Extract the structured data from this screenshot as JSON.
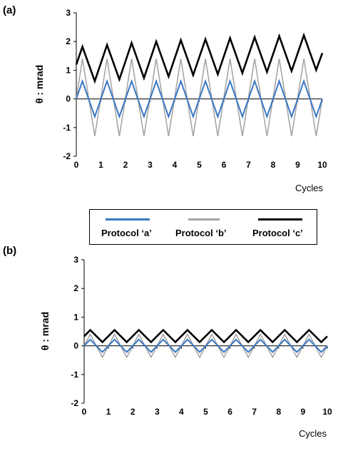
{
  "panels": {
    "a": {
      "label": "(a)"
    },
    "b": {
      "label": "(b)"
    }
  },
  "legend": [
    {
      "name": "Protocol ‘a’",
      "color": "#3a78c4"
    },
    {
      "name": "Protocol ‘b’",
      "color": "#a6a6a6"
    },
    {
      "name": "Protocol ‘c’",
      "color": "#000000"
    }
  ],
  "chart_data": [
    {
      "type": "line",
      "panel": "(a)",
      "xlabel": "Cycles",
      "ylabel": "θ : mrad",
      "xlim": [
        0,
        10
      ],
      "ylim": [
        -2,
        3
      ],
      "xticks": [
        0,
        1,
        2,
        3,
        4,
        5,
        6,
        7,
        8,
        9,
        10
      ],
      "yticks": [
        -2,
        -1,
        0,
        1,
        2,
        3
      ],
      "series": [
        {
          "name": "Protocol ‘a’",
          "color": "#3a78c4",
          "x": [
            0,
            0.25,
            0.75,
            1.25,
            1.75,
            2.25,
            2.75,
            3.25,
            3.75,
            4.25,
            4.75,
            5.25,
            5.75,
            6.25,
            6.75,
            7.25,
            7.75,
            8.25,
            8.75,
            9.25,
            9.75,
            10
          ],
          "y": [
            0,
            0.62,
            -0.62,
            0.62,
            -0.62,
            0.62,
            -0.62,
            0.62,
            -0.62,
            0.62,
            -0.62,
            0.62,
            -0.62,
            0.62,
            -0.62,
            0.62,
            -0.62,
            0.62,
            -0.62,
            0.62,
            -0.62,
            0
          ]
        },
        {
          "name": "Protocol ‘b’",
          "color": "#a6a6a6",
          "x": [
            0,
            0.25,
            0.75,
            1.25,
            1.75,
            2.25,
            2.75,
            3.25,
            3.75,
            4.25,
            4.75,
            5.25,
            5.75,
            6.25,
            6.75,
            7.25,
            7.75,
            8.25,
            8.75,
            9.25,
            9.75,
            10
          ],
          "y": [
            0,
            1.4,
            -1.3,
            1.4,
            -1.3,
            1.4,
            -1.3,
            1.4,
            -1.3,
            1.4,
            -1.3,
            1.4,
            -1.3,
            1.4,
            -1.3,
            1.4,
            -1.3,
            1.4,
            -1.3,
            1.4,
            -1.3,
            0
          ]
        },
        {
          "name": "Protocol ‘c’",
          "color": "#000000",
          "x": [
            0,
            0.25,
            0.75,
            1.25,
            1.75,
            2.25,
            2.75,
            3.25,
            3.75,
            4.25,
            4.75,
            5.25,
            5.75,
            6.25,
            6.75,
            7.25,
            7.75,
            8.25,
            8.75,
            9.25,
            9.75,
            10
          ],
          "y": [
            1.2,
            1.82,
            0.62,
            1.88,
            0.68,
            1.95,
            0.73,
            2.0,
            0.78,
            2.05,
            0.83,
            2.08,
            0.86,
            2.12,
            0.9,
            2.15,
            0.94,
            2.19,
            0.97,
            2.22,
            1.01,
            1.6
          ]
        }
      ]
    },
    {
      "type": "line",
      "panel": "(b)",
      "xlabel": "Cycles",
      "ylabel": "θ : mrad",
      "xlim": [
        0,
        10
      ],
      "ylim": [
        -2,
        3
      ],
      "xticks": [
        0,
        1,
        2,
        3,
        4,
        5,
        6,
        7,
        8,
        9,
        10
      ],
      "yticks": [
        -2,
        -1,
        0,
        1,
        2,
        3
      ],
      "series": [
        {
          "name": "Protocol ‘a’",
          "color": "#3a78c4",
          "x": [
            0,
            0.25,
            0.75,
            1.25,
            1.75,
            2.25,
            2.75,
            3.25,
            3.75,
            4.25,
            4.75,
            5.25,
            5.75,
            6.25,
            6.75,
            7.25,
            7.75,
            8.25,
            8.75,
            9.25,
            9.75,
            10
          ],
          "y": [
            0,
            0.22,
            -0.22,
            0.22,
            -0.22,
            0.22,
            -0.22,
            0.22,
            -0.22,
            0.22,
            -0.22,
            0.22,
            -0.22,
            0.22,
            -0.22,
            0.22,
            -0.22,
            0.22,
            -0.22,
            0.22,
            -0.22,
            0
          ]
        },
        {
          "name": "Protocol ‘b’",
          "color": "#a6a6a6",
          "x": [
            0,
            0.25,
            0.75,
            1.25,
            1.75,
            2.25,
            2.75,
            3.25,
            3.75,
            4.25,
            4.75,
            5.25,
            5.75,
            6.25,
            6.75,
            7.25,
            7.75,
            8.25,
            8.75,
            9.25,
            9.75,
            10
          ],
          "y": [
            0,
            0.4,
            -0.4,
            0.4,
            -0.4,
            0.4,
            -0.4,
            0.4,
            -0.4,
            0.4,
            -0.4,
            0.4,
            -0.4,
            0.4,
            -0.4,
            0.4,
            -0.4,
            0.4,
            -0.4,
            0.4,
            -0.4,
            0
          ]
        },
        {
          "name": "Protocol ‘c’",
          "color": "#000000",
          "x": [
            0,
            0.25,
            0.75,
            1.25,
            1.75,
            2.25,
            2.75,
            3.25,
            3.75,
            4.25,
            4.75,
            5.25,
            5.75,
            6.25,
            6.75,
            7.25,
            7.75,
            8.25,
            8.75,
            9.25,
            9.75,
            10
          ],
          "y": [
            0.33,
            0.55,
            0.13,
            0.55,
            0.13,
            0.55,
            0.13,
            0.55,
            0.13,
            0.55,
            0.13,
            0.55,
            0.13,
            0.55,
            0.13,
            0.55,
            0.13,
            0.55,
            0.13,
            0.55,
            0.13,
            0.33
          ]
        }
      ]
    }
  ]
}
